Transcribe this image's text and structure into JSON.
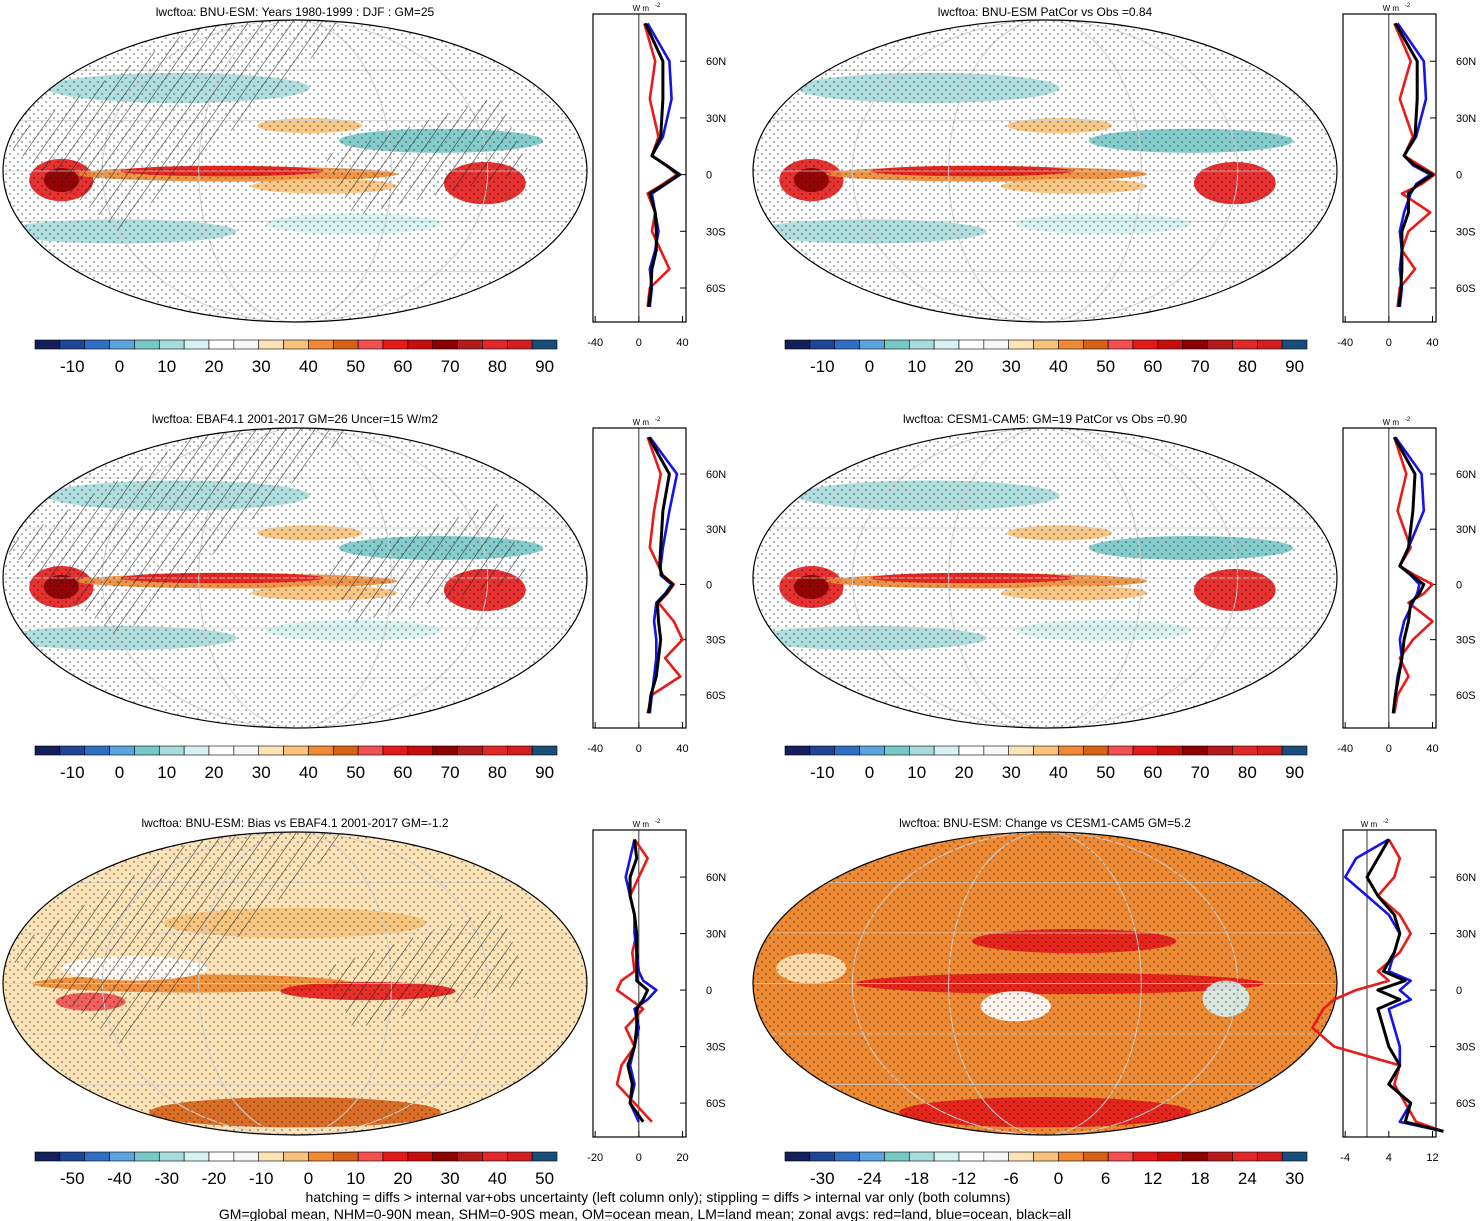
{
  "panels": [
    {
      "title": "lwcftoa: BNU-ESM: Years 1980-1999 : DJF : GM=25",
      "colorbar_labels": [
        "-10",
        "0",
        "10",
        "20",
        "30",
        "40",
        "50",
        "60",
        "70",
        "80",
        "90"
      ],
      "zonal_ticks": [
        "-40",
        "0",
        "40"
      ],
      "hatched": true,
      "palette": "abs"
    },
    {
      "title": "lwcftoa: BNU-ESM PatCor vs Obs =0.84",
      "colorbar_labels": [
        "-10",
        "0",
        "10",
        "20",
        "30",
        "40",
        "50",
        "60",
        "70",
        "80",
        "90"
      ],
      "zonal_ticks": [
        "-40",
        "0",
        "40"
      ],
      "hatched": false,
      "palette": "abs"
    },
    {
      "title": "lwcftoa: EBAF4.1 2001-2017 GM=26 Uncer=15 W/m2",
      "colorbar_labels": [
        "-10",
        "0",
        "10",
        "20",
        "30",
        "40",
        "50",
        "60",
        "70",
        "80",
        "90"
      ],
      "zonal_ticks": [
        "-40",
        "0",
        "40"
      ],
      "hatched": true,
      "palette": "abs"
    },
    {
      "title": "lwcftoa: CESM1-CAM5: GM=19 PatCor vs Obs =0.90",
      "colorbar_labels": [
        "-10",
        "0",
        "10",
        "20",
        "30",
        "40",
        "50",
        "60",
        "70",
        "80",
        "90"
      ],
      "zonal_ticks": [
        "-40",
        "0",
        "40"
      ],
      "hatched": false,
      "palette": "abs"
    },
    {
      "title": "lwcftoa: BNU-ESM: Bias vs EBAF4.1 2001-2017 GM=-1.2",
      "colorbar_labels": [
        "-50",
        "-40",
        "-30",
        "-20",
        "-10",
        "0",
        "10",
        "20",
        "30",
        "40",
        "50"
      ],
      "zonal_ticks": [
        "-20",
        "0",
        "20"
      ],
      "hatched": true,
      "palette": "diff"
    },
    {
      "title": "lwcftoa: BNU-ESM: Change vs CESM1-CAM5 GM=5.2",
      "colorbar_labels": [
        "-30",
        "-24",
        "-18",
        "-12",
        "-6",
        "0",
        "6",
        "12",
        "18",
        "24",
        "30"
      ],
      "zonal_ticks": [
        "-4",
        "4",
        "12"
      ],
      "hatched": false,
      "palette": "change"
    }
  ],
  "lat_labels": [
    "60N",
    "30N",
    "0",
    "30S",
    "60S"
  ],
  "zonal_unit": "W m",
  "zonal_unit_exp": "-2",
  "line_colors": {
    "land": "#e81a1a",
    "ocean": "#1414e6",
    "all": "#000000"
  },
  "footer": [
    "hatching = diffs > internal var+obs uncertainty (left column only); stippling = diffs > internal var only (both columns)",
    "GM=global mean, NHM=0-90N mean, SHM=0-90S mean, OM=ocean mean, LM=land mean; zonal avgs: red=land, blue=ocean, black=all"
  ],
  "chart_data": [
    {
      "type": "heatmap",
      "title": "lwcftoa: BNU-ESM: Years 1980-1999 : DJF : GM=25",
      "colorbar_range": [
        -10,
        90
      ],
      "zonal_mean_series": [
        {
          "name": "land",
          "lat": [
            80,
            60,
            40,
            20,
            10,
            5,
            0,
            -5,
            -10,
            -20,
            -30,
            -40,
            -50,
            -60,
            -70
          ],
          "values": [
            5,
            15,
            10,
            18,
            12,
            25,
            35,
            22,
            8,
            15,
            12,
            20,
            28,
            10,
            8
          ]
        },
        {
          "name": "ocean",
          "lat": [
            80,
            60,
            40,
            20,
            10,
            5,
            0,
            -5,
            -10,
            -20,
            -30,
            -40,
            -50,
            -60,
            -70
          ],
          "values": [
            8,
            28,
            30,
            22,
            12,
            25,
            38,
            25,
            12,
            15,
            18,
            15,
            10,
            12,
            10
          ]
        },
        {
          "name": "all",
          "lat": [
            80,
            60,
            40,
            20,
            10,
            5,
            0,
            -5,
            -10,
            -20,
            -30,
            -40,
            -50,
            -60,
            -70
          ],
          "values": [
            6,
            22,
            22,
            20,
            12,
            25,
            37,
            24,
            10,
            15,
            16,
            16,
            12,
            11,
            9
          ]
        }
      ]
    },
    {
      "type": "heatmap",
      "title": "lwcftoa: BNU-ESM PatCor vs Obs =0.84",
      "colorbar_range": [
        -10,
        90
      ],
      "zonal_mean_series": [
        {
          "name": "land",
          "lat": [
            80,
            60,
            40,
            20,
            10,
            5,
            0,
            -5,
            -10,
            -20,
            -30,
            -40,
            -50,
            -60,
            -70
          ],
          "values": [
            5,
            20,
            10,
            22,
            14,
            28,
            42,
            30,
            12,
            38,
            18,
            12,
            24,
            10,
            8
          ]
        },
        {
          "name": "ocean",
          "lat": [
            80,
            60,
            40,
            20,
            10,
            5,
            0,
            -5,
            -10,
            -20,
            -30,
            -40,
            -50,
            -60,
            -70
          ],
          "values": [
            8,
            32,
            34,
            25,
            14,
            22,
            38,
            25,
            20,
            14,
            10,
            12,
            10,
            12,
            10
          ]
        },
        {
          "name": "all",
          "lat": [
            80,
            60,
            40,
            20,
            10,
            5,
            0,
            -5,
            -10,
            -20,
            -30,
            -40,
            -50,
            -60,
            -70
          ],
          "values": [
            6,
            26,
            26,
            24,
            14,
            24,
            40,
            27,
            18,
            18,
            12,
            12,
            12,
            11,
            9
          ]
        }
      ]
    },
    {
      "type": "heatmap",
      "title": "lwcftoa: EBAF4.1 2001-2017 GM=26 Uncer=15 W/m2",
      "colorbar_range": [
        -10,
        90
      ],
      "zonal_mean_series": [
        {
          "name": "land",
          "lat": [
            80,
            60,
            40,
            20,
            10,
            5,
            0,
            -5,
            -10,
            -20,
            -30,
            -40,
            -50,
            -60,
            -70
          ],
          "values": [
            8,
            20,
            14,
            10,
            18,
            22,
            32,
            26,
            18,
            32,
            40,
            24,
            38,
            12,
            8
          ]
        },
        {
          "name": "ocean",
          "lat": [
            80,
            60,
            40,
            20,
            10,
            5,
            0,
            -5,
            -10,
            -20,
            -30,
            -40,
            -50,
            -60,
            -70
          ],
          "values": [
            10,
            35,
            28,
            22,
            20,
            20,
            30,
            24,
            16,
            14,
            16,
            16,
            14,
            12,
            10
          ]
        },
        {
          "name": "all",
          "lat": [
            80,
            60,
            40,
            20,
            10,
            5,
            0,
            -5,
            -10,
            -20,
            -30,
            -40,
            -50,
            -60,
            -70
          ],
          "values": [
            9,
            28,
            22,
            20,
            19,
            21,
            31,
            25,
            17,
            18,
            20,
            18,
            16,
            11,
            9
          ]
        }
      ]
    },
    {
      "type": "heatmap",
      "title": "lwcftoa: CESM1-CAM5: GM=19 PatCor vs Obs =0.90",
      "colorbar_range": [
        -10,
        90
      ],
      "zonal_mean_series": [
        {
          "name": "land",
          "lat": [
            80,
            60,
            40,
            20,
            10,
            5,
            0,
            -5,
            -10,
            -20,
            -30,
            -40,
            -50,
            -60,
            -70
          ],
          "values": [
            5,
            16,
            8,
            20,
            10,
            24,
            40,
            32,
            18,
            40,
            22,
            10,
            18,
            8,
            5
          ]
        },
        {
          "name": "ocean",
          "lat": [
            80,
            60,
            40,
            20,
            10,
            5,
            0,
            -5,
            -10,
            -20,
            -30,
            -40,
            -50,
            -60,
            -70
          ],
          "values": [
            6,
            30,
            32,
            18,
            10,
            20,
            28,
            26,
            22,
            14,
            10,
            12,
            8,
            6,
            4
          ]
        },
        {
          "name": "all",
          "lat": [
            80,
            60,
            40,
            20,
            10,
            5,
            0,
            -5,
            -10,
            -20,
            -30,
            -40,
            -50,
            -60,
            -70
          ],
          "values": [
            5,
            24,
            22,
            18,
            10,
            21,
            32,
            28,
            20,
            18,
            14,
            12,
            9,
            6,
            4
          ]
        }
      ]
    },
    {
      "type": "heatmap",
      "title": "lwcftoa: BNU-ESM: Bias vs EBAF4.1 2001-2017 GM=-1.2",
      "colorbar_range": [
        -50,
        50
      ],
      "zonal_mean_series": [
        {
          "name": "land",
          "lat": [
            80,
            70,
            60,
            50,
            40,
            30,
            20,
            10,
            5,
            0,
            -5,
            -10,
            -20,
            -30,
            -40,
            -50,
            -60,
            -70
          ],
          "values": [
            -2,
            4,
            0,
            -4,
            -2,
            -1,
            -3,
            -2,
            -8,
            -10,
            -4,
            2,
            -6,
            -2,
            -8,
            -10,
            -2,
            6
          ]
        },
        {
          "name": "ocean",
          "lat": [
            80,
            70,
            60,
            50,
            40,
            30,
            20,
            10,
            5,
            0,
            -5,
            -10,
            -20,
            -30,
            -40,
            -50,
            -60,
            -70
          ],
          "values": [
            -2,
            -4,
            -6,
            -4,
            -2,
            -2,
            -1,
            0,
            2,
            8,
            4,
            -2,
            0,
            -2,
            -4,
            -2,
            -4,
            0
          ]
        },
        {
          "name": "all",
          "lat": [
            80,
            70,
            60,
            50,
            40,
            30,
            20,
            10,
            5,
            0,
            -5,
            -10,
            -20,
            -30,
            -40,
            -50,
            -60,
            -70
          ],
          "values": [
            -2,
            -1,
            -4,
            -4,
            -2,
            -1,
            -1,
            -1,
            -1,
            4,
            2,
            -1,
            -1,
            -2,
            -5,
            -3,
            -4,
            2
          ]
        }
      ]
    },
    {
      "type": "heatmap",
      "title": "lwcftoa: BNU-ESM: Change vs CESM1-CAM5 GM=5.2",
      "colorbar_range": [
        -30,
        30
      ],
      "zonal_mean_series": [
        {
          "name": "land",
          "lat": [
            80,
            70,
            60,
            50,
            40,
            30,
            20,
            10,
            5,
            0,
            -5,
            -10,
            -20,
            -30,
            -40,
            -50,
            -60,
            -70,
            -75
          ],
          "values": [
            4,
            6,
            5,
            2,
            6,
            8,
            6,
            2,
            4,
            -2,
            -6,
            -8,
            -10,
            -6,
            6,
            5,
            7,
            9,
            14
          ]
        },
        {
          "name": "ocean",
          "lat": [
            80,
            70,
            60,
            50,
            40,
            30,
            20,
            10,
            5,
            0,
            -5,
            -10,
            -20,
            -30,
            -40,
            -50,
            -60,
            -70,
            -75
          ],
          "values": [
            4,
            -2,
            -4,
            0,
            4,
            6,
            5,
            4,
            8,
            6,
            8,
            4,
            5,
            6,
            6,
            4,
            8,
            6,
            14
          ]
        },
        {
          "name": "all",
          "lat": [
            80,
            70,
            60,
            50,
            40,
            30,
            20,
            10,
            5,
            0,
            -5,
            -10,
            -20,
            -30,
            -40,
            -50,
            -60,
            -70,
            -75
          ],
          "values": [
            4,
            2,
            0,
            2,
            5,
            6,
            5,
            3,
            7,
            2,
            6,
            2,
            3,
            4,
            6,
            4,
            8,
            7,
            14
          ]
        }
      ]
    }
  ]
}
